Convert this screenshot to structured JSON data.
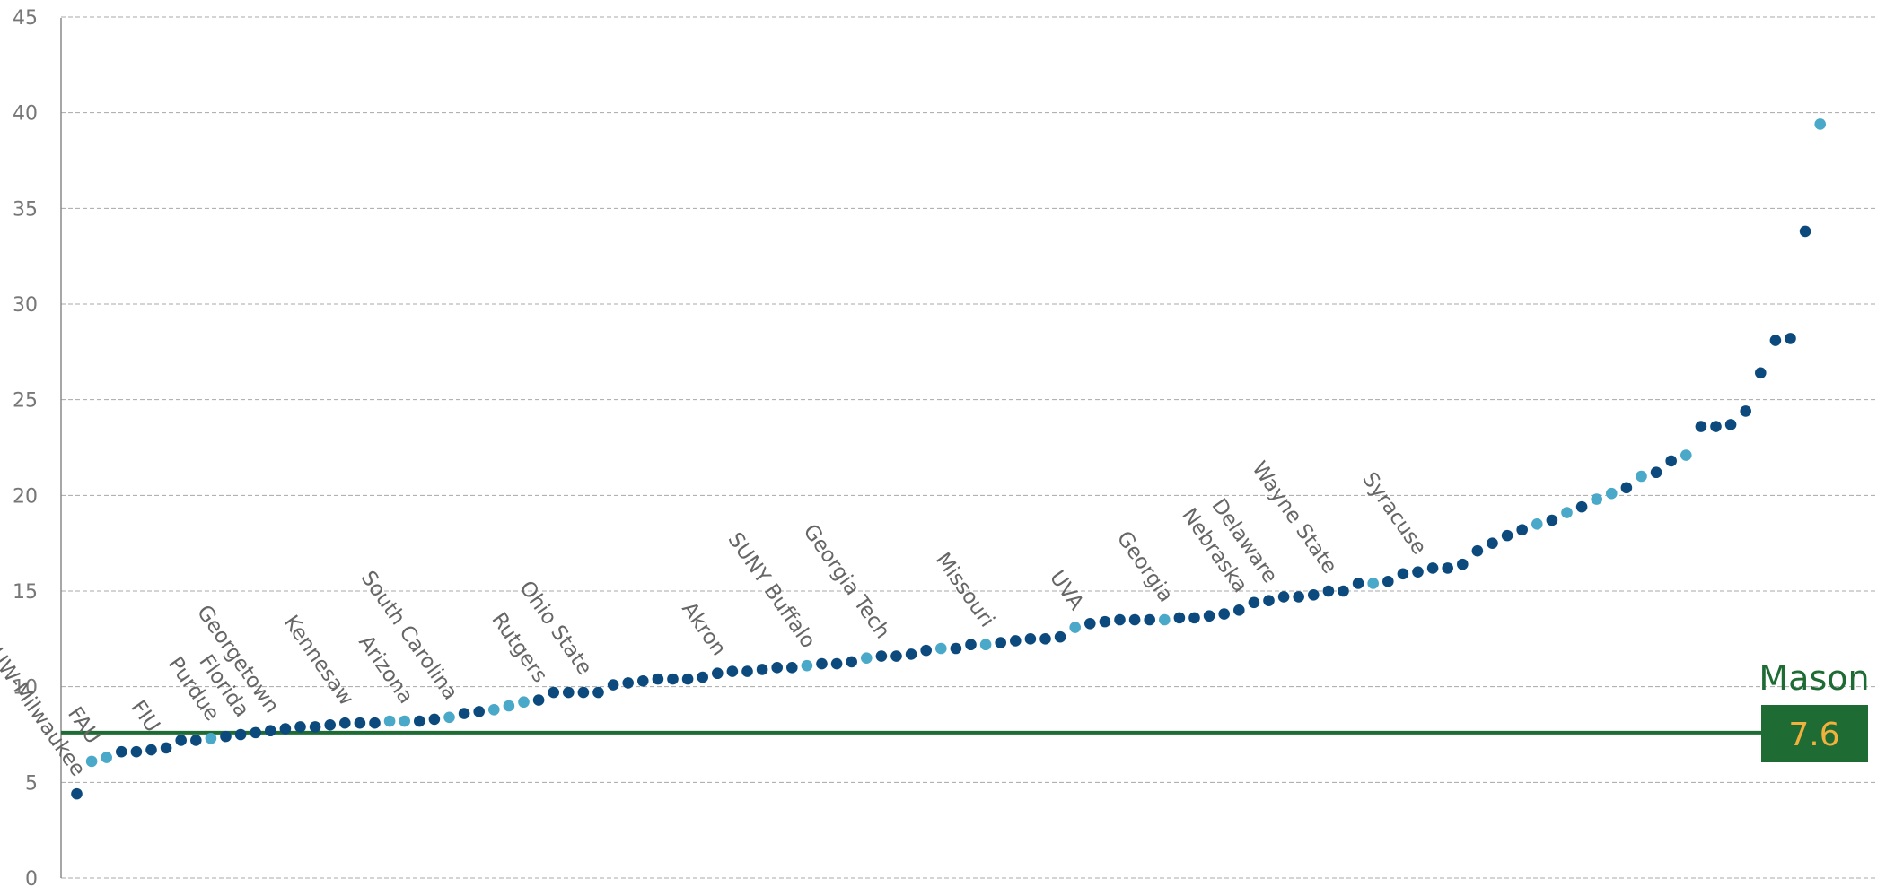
{
  "chart_data": {
    "type": "scatter",
    "title": "",
    "xlabel": "",
    "ylabel": "",
    "ylim": [
      0,
      45
    ],
    "y_ticks": [
      "0",
      "5",
      "10",
      "15",
      "20",
      "25",
      "30",
      "35",
      "40",
      "45"
    ],
    "grid": "horizontal-dashed",
    "colors": {
      "default": "#0c4a7d",
      "highlight": "#4aa8c8",
      "reference": "#1f6b34",
      "reference_value_text": "#f2b13c"
    },
    "reference_line": {
      "label": "Mason",
      "value": 7.6,
      "value_text": "7.6"
    },
    "values": [
      4.4,
      6.1,
      6.3,
      6.6,
      6.6,
      6.7,
      6.8,
      7.2,
      7.2,
      7.3,
      7.4,
      7.5,
      7.6,
      7.7,
      7.8,
      7.9,
      7.9,
      8.0,
      8.1,
      8.1,
      8.1,
      8.2,
      8.2,
      8.2,
      8.3,
      8.4,
      8.6,
      8.7,
      8.8,
      9.0,
      9.2,
      9.3,
      9.7,
      9.7,
      9.7,
      9.7,
      10.1,
      10.2,
      10.3,
      10.4,
      10.4,
      10.4,
      10.5,
      10.7,
      10.8,
      10.8,
      10.9,
      11.0,
      11.0,
      11.1,
      11.2,
      11.2,
      11.3,
      11.5,
      11.6,
      11.6,
      11.7,
      11.9,
      12.0,
      12.0,
      12.2,
      12.2,
      12.3,
      12.4,
      12.5,
      12.5,
      12.6,
      13.1,
      13.3,
      13.4,
      13.5,
      13.5,
      13.5,
      13.5,
      13.6,
      13.6,
      13.7,
      13.8,
      14.0,
      14.4,
      14.5,
      14.7,
      14.7,
      14.8,
      15.0,
      15.0,
      15.4,
      15.4,
      15.5,
      15.9,
      16.0,
      16.2,
      16.2,
      16.4,
      17.1,
      17.5,
      17.9,
      18.2,
      18.5,
      18.7,
      19.1,
      19.4,
      19.8,
      20.1,
      20.4,
      21.0,
      21.2,
      21.8,
      22.1,
      23.6,
      23.6,
      23.7,
      24.4,
      26.4,
      28.1,
      28.2,
      33.8,
      39.4
    ],
    "highlighted": [
      1,
      2,
      9,
      21,
      22,
      25,
      28,
      29,
      30,
      49,
      53,
      58,
      61,
      67,
      73,
      87,
      98,
      100,
      102,
      103,
      105,
      108,
      117
    ],
    "labeled_points": [
      {
        "index": 0,
        "label": "UW-Milwaukee"
      },
      {
        "index": 1,
        "label": "FAU"
      },
      {
        "index": 5,
        "label": "FIU"
      },
      {
        "index": 9,
        "label": "Purdue"
      },
      {
        "index": 11,
        "label": "Florida"
      },
      {
        "index": 13,
        "label": "Georgetown"
      },
      {
        "index": 18,
        "label": "Kennesaw"
      },
      {
        "index": 22,
        "label": "Arizona"
      },
      {
        "index": 25,
        "label": "South Carolina"
      },
      {
        "index": 31,
        "label": "Rutgers"
      },
      {
        "index": 34,
        "label": "Ohio State"
      },
      {
        "index": 43,
        "label": "Akron"
      },
      {
        "index": 49,
        "label": "SUNY Buffalo"
      },
      {
        "index": 54,
        "label": "Georgia Tech"
      },
      {
        "index": 61,
        "label": "Missouri"
      },
      {
        "index": 67,
        "label": "UVA"
      },
      {
        "index": 73,
        "label": "Georgia"
      },
      {
        "index": 78,
        "label": "Nebraska"
      },
      {
        "index": 80,
        "label": "Delaware"
      },
      {
        "index": 84,
        "label": "Wayne State"
      },
      {
        "index": 90,
        "label": "Syracuse"
      }
    ]
  }
}
